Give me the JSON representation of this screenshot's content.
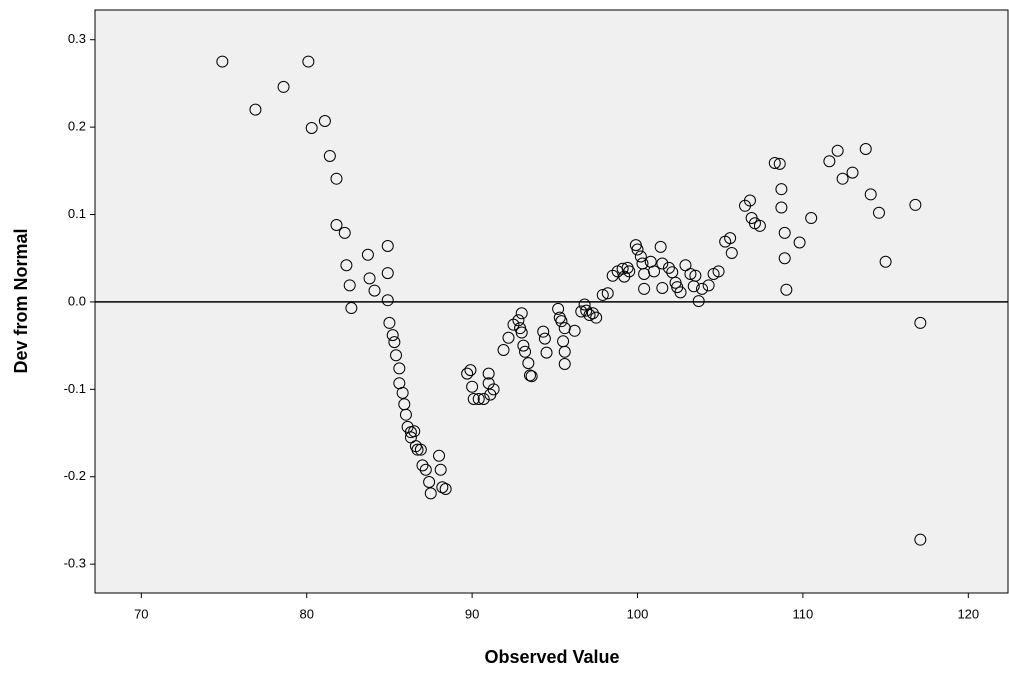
{
  "chart_data": {
    "type": "scatter",
    "x_label": "Observed Value",
    "y_label": "Dev from Normal",
    "xlim": [
      67.2,
      122.4
    ],
    "ylim": [
      -0.333,
      0.334
    ],
    "xticks": [
      70,
      80,
      90,
      100,
      110,
      120
    ],
    "yticks": [
      0.3,
      0.2,
      0.1,
      {
        "value": 0,
        "label": "0.0"
      },
      -0.1,
      -0.2,
      -0.3
    ],
    "reference_y": 0,
    "color": "#000000",
    "background": "#f0f0f0",
    "x": [
      74.9,
      76.9,
      78.6,
      80.1,
      80.3,
      81.1,
      81.4,
      81.8,
      81.8,
      82.3,
      82.4,
      82.6,
      82.7,
      83.7,
      83.8,
      84.1,
      84.9,
      84.9,
      84.9,
      85.0,
      85.2,
      85.3,
      85.4,
      85.6,
      85.6,
      85.8,
      85.9,
      86.0,
      86.1,
      86.3,
      86.5,
      86.3,
      86.6,
      86.7,
      86.9,
      87.0,
      87.2,
      87.4,
      87.5,
      88.0,
      88.1,
      88.2,
      88.4,
      89.7,
      89.9,
      90.0,
      90.1,
      90.4,
      90.7,
      91.0,
      91.0,
      91.1,
      91.3,
      91.9,
      92.2,
      92.5,
      92.8,
      93.0,
      92.9,
      93.0,
      93.1,
      93.2,
      93.4,
      93.5,
      93.6,
      94.3,
      94.4,
      94.5,
      95.2,
      95.3,
      95.4,
      95.6,
      95.5,
      95.6,
      95.6,
      96.2,
      96.6,
      96.8,
      96.9,
      97.1,
      97.3,
      97.5,
      97.9,
      98.2,
      98.5,
      98.8,
      99.1,
      99.4,
      99.2,
      99.5,
      99.9,
      100.0,
      100.2,
      100.3,
      100.4,
      100.4,
      100.8,
      101.0,
      101.4,
      101.5,
      101.5,
      101.9,
      102.1,
      102.3,
      102.4,
      102.6,
      102.9,
      103.2,
      103.5,
      103.4,
      103.7,
      103.9,
      104.3,
      104.6,
      104.9,
      105.3,
      105.6,
      105.7,
      106.5,
      106.8,
      106.9,
      107.1,
      107.4,
      108.3,
      108.6,
      108.7,
      108.7,
      108.9,
      108.9,
      109.0,
      109.8,
      110.5,
      111.6,
      112.1,
      112.4,
      113.0,
      113.8,
      114.1,
      114.6,
      115.0,
      116.8,
      117.1,
      117.1
    ],
    "values": [
      0.275,
      0.22,
      0.246,
      0.275,
      0.199,
      0.207,
      0.167,
      0.141,
      0.088,
      0.079,
      0.042,
      0.019,
      -0.007,
      0.054,
      0.027,
      0.013,
      0.064,
      0.033,
      0.002,
      -0.024,
      -0.038,
      -0.046,
      -0.061,
      -0.076,
      -0.093,
      -0.104,
      -0.117,
      -0.129,
      -0.143,
      -0.149,
      -0.148,
      -0.155,
      -0.165,
      -0.169,
      -0.169,
      -0.187,
      -0.192,
      -0.206,
      -0.219,
      -0.176,
      -0.192,
      -0.212,
      -0.214,
      -0.082,
      -0.078,
      -0.097,
      -0.111,
      -0.111,
      -0.111,
      -0.082,
      -0.093,
      -0.106,
      -0.1,
      -0.055,
      -0.041,
      -0.026,
      -0.021,
      -0.013,
      -0.03,
      -0.035,
      -0.05,
      -0.057,
      -0.07,
      -0.084,
      -0.085,
      -0.034,
      -0.042,
      -0.058,
      -0.008,
      -0.018,
      -0.022,
      -0.03,
      -0.045,
      -0.057,
      -0.071,
      -0.033,
      -0.011,
      -0.003,
      -0.01,
      -0.015,
      -0.013,
      -0.018,
      0.008,
      0.01,
      0.03,
      0.035,
      0.038,
      0.039,
      0.029,
      0.035,
      0.065,
      0.06,
      0.052,
      0.044,
      0.032,
      0.015,
      0.046,
      0.035,
      0.063,
      0.044,
      0.016,
      0.039,
      0.034,
      0.022,
      0.017,
      0.011,
      0.042,
      0.032,
      0.03,
      0.018,
      0.001,
      0.015,
      0.019,
      0.032,
      0.035,
      0.069,
      0.073,
      0.056,
      0.11,
      0.116,
      0.096,
      0.09,
      0.087,
      0.159,
      0.158,
      0.129,
      0.108,
      0.079,
      0.05,
      0.014,
      0.068,
      0.096,
      0.161,
      0.173,
      0.141,
      0.148,
      0.175,
      0.123,
      0.102,
      0.046,
      0.111,
      -0.024,
      -0.272
    ]
  }
}
